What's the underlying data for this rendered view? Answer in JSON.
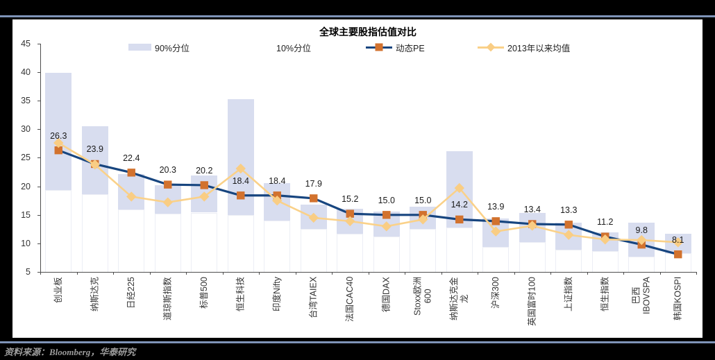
{
  "page": {
    "source_text": "资料来源：Bloomberg，华泰研究",
    "panel_bg": "#ffffff",
    "page_bg": "#000000",
    "rule_color": "#7e93b7"
  },
  "chart_data": {
    "type": "bar",
    "subtype": "floating-range-bars-with-two-lines",
    "title": "全球主要股指估值对比",
    "xlabel": "",
    "ylabel": "",
    "y_axis": {
      "min": 5,
      "max": 45,
      "step": 5,
      "ticks": [
        45,
        40,
        35,
        30,
        25,
        20,
        15,
        10,
        5
      ]
    },
    "grid": "off",
    "legend_position": "top",
    "legend": [
      {
        "label": "90%分位",
        "type": "bar-swatch",
        "color": "#d8ddef"
      },
      {
        "label": "10%分位",
        "type": "bar-swatch",
        "color": "#ffffff"
      },
      {
        "label": "动态PE",
        "type": "line-square",
        "line_color": "#17457f",
        "marker_color": "#d2722e"
      },
      {
        "label": "2013年以来均值",
        "type": "line-diamond",
        "line_color": "#fad189",
        "marker_color": "#f9cd84"
      }
    ],
    "categories": [
      "创业板",
      "纳斯达克",
      "日经225",
      "道琼斯指数",
      "标普500",
      "恒生科技",
      "印度Nifty",
      "台湾TAIEX",
      "法国CAC40",
      "德国DAX",
      "Stoxx欧洲\n600",
      "纳斯达克金\n龙",
      "沪深300",
      "英国富时100",
      "上证指数",
      "恒生指数",
      "巴西\nIBOVSPA",
      "韩国KOSPI"
    ],
    "series": [
      {
        "name": "动态PE",
        "type": "line",
        "color": "#17457f",
        "marker": "square",
        "marker_color": "#d2722e",
        "values": [
          26.3,
          23.9,
          22.4,
          20.3,
          20.2,
          18.4,
          18.4,
          17.9,
          15.2,
          15.0,
          15.0,
          14.2,
          13.9,
          13.4,
          13.3,
          11.2,
          9.8,
          8.1
        ],
        "data_labels": [
          "26.3",
          "23.9",
          "22.4",
          "20.3",
          "20.2",
          "18.4",
          "18.4",
          "17.9",
          "15.2",
          "15.0",
          "15.0",
          "14.2",
          "13.9",
          "13.4",
          "13.3",
          "11.2",
          "9.8",
          "8.1"
        ]
      },
      {
        "name": "2013年以来均值",
        "type": "line",
        "color": "#fad189",
        "marker": "diamond",
        "marker_color": "#f9cd84",
        "values": [
          27.6,
          23.8,
          18.2,
          17.2,
          18.2,
          23.1,
          17.5,
          14.5,
          13.9,
          13.0,
          14.2,
          19.7,
          12.1,
          13.1,
          11.5,
          10.7,
          10.6,
          10.2
        ]
      },
      {
        "name": "10%分位",
        "type": "bar-range-low",
        "color": "#ffffff",
        "values": [
          19.3,
          18.6,
          16.0,
          15.2,
          15.4,
          15.0,
          14.0,
          12.5,
          11.7,
          11.2,
          12.5,
          12.8,
          9.4,
          10.2,
          8.9,
          8.7,
          7.7,
          8.3
        ]
      },
      {
        "name": "90%分位",
        "type": "bar-range-high",
        "color": "#d8ddef",
        "values": [
          39.8,
          30.5,
          22.1,
          20.2,
          21.9,
          35.3,
          20.6,
          16.8,
          16.1,
          15.6,
          16.4,
          26.2,
          14.4,
          15.3,
          13.7,
          11.9,
          13.6,
          11.7
        ]
      }
    ]
  }
}
